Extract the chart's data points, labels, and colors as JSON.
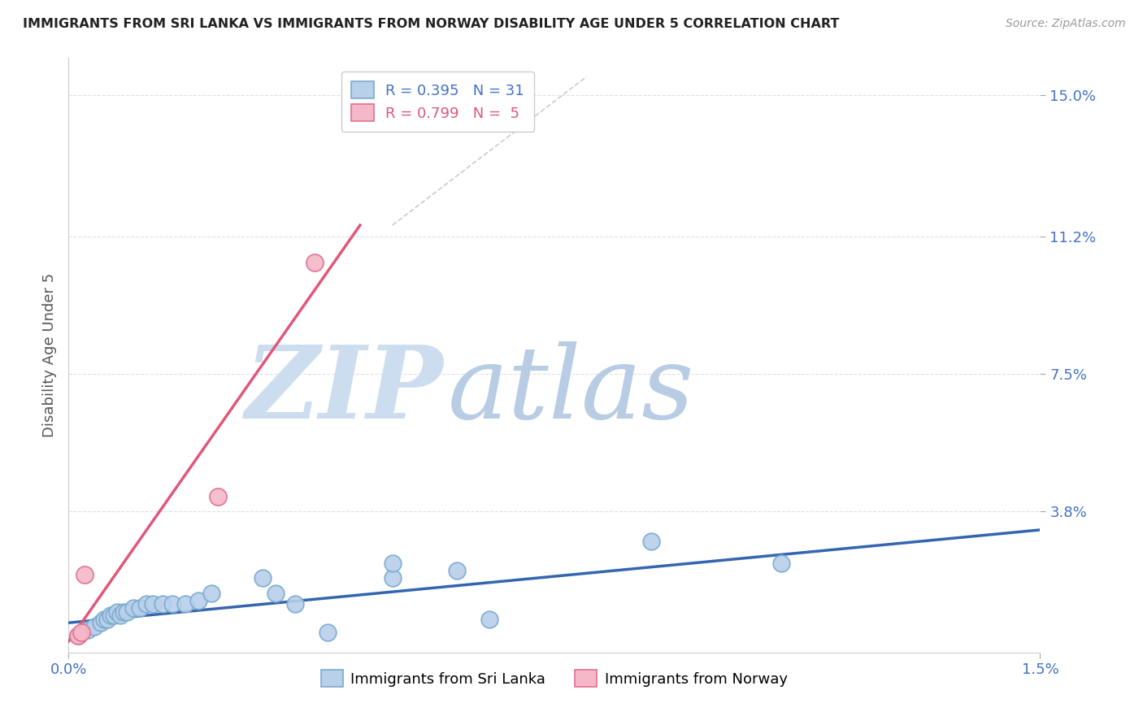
{
  "title": "IMMIGRANTS FROM SRI LANKA VS IMMIGRANTS FROM NORWAY DISABILITY AGE UNDER 5 CORRELATION CHART",
  "source": "Source: ZipAtlas.com",
  "ylabel_label": "Disability Age Under 5",
  "x_min": 0.0,
  "x_max": 0.015,
  "y_min": 0.0,
  "y_max": 0.16,
  "y_ticks": [
    0.038,
    0.075,
    0.112,
    0.15
  ],
  "y_tick_labels": [
    "3.8%",
    "7.5%",
    "11.2%",
    "15.0%"
  ],
  "x_ticks": [
    0.0,
    0.015
  ],
  "x_tick_labels": [
    "0.0%",
    "1.5%"
  ],
  "sri_lanka_scatter": [
    [
      0.00015,
      0.0045
    ],
    [
      0.0003,
      0.006
    ],
    [
      0.0004,
      0.007
    ],
    [
      0.0005,
      0.008
    ],
    [
      0.00055,
      0.009
    ],
    [
      0.0006,
      0.009
    ],
    [
      0.00065,
      0.01
    ],
    [
      0.0007,
      0.01
    ],
    [
      0.00075,
      0.011
    ],
    [
      0.0008,
      0.01
    ],
    [
      0.00085,
      0.011
    ],
    [
      0.0009,
      0.011
    ],
    [
      0.001,
      0.012
    ],
    [
      0.0011,
      0.012
    ],
    [
      0.0012,
      0.013
    ],
    [
      0.0013,
      0.013
    ],
    [
      0.00145,
      0.013
    ],
    [
      0.0016,
      0.013
    ],
    [
      0.0018,
      0.013
    ],
    [
      0.002,
      0.014
    ],
    [
      0.0022,
      0.016
    ],
    [
      0.003,
      0.02
    ],
    [
      0.0032,
      0.016
    ],
    [
      0.0035,
      0.013
    ],
    [
      0.004,
      0.0055
    ],
    [
      0.005,
      0.02
    ],
    [
      0.005,
      0.024
    ],
    [
      0.006,
      0.022
    ],
    [
      0.0065,
      0.009
    ],
    [
      0.009,
      0.03
    ],
    [
      0.011,
      0.024
    ]
  ],
  "norway_scatter": [
    [
      0.00015,
      0.0045
    ],
    [
      0.0002,
      0.0055
    ],
    [
      0.00025,
      0.021
    ],
    [
      0.0023,
      0.042
    ],
    [
      0.0038,
      0.105
    ]
  ],
  "sri_lanka_line": [
    [
      0.0,
      0.008
    ],
    [
      0.015,
      0.033
    ]
  ],
  "norway_line": [
    [
      0.0,
      0.003
    ],
    [
      0.0045,
      0.115
    ]
  ],
  "diagonal_line": [
    [
      0.005,
      0.115
    ],
    [
      0.008,
      0.155
    ]
  ],
  "scatter_color_sri": "#b8d0ea",
  "scatter_edge_sri": "#7aaad0",
  "scatter_color_norway": "#f5b8c8",
  "scatter_edge_norway": "#e07090",
  "line_color_sri": "#3465b0",
  "line_color_norway": "#e05878",
  "diagonal_color": "#cccccc",
  "watermark_zip": "ZIP",
  "watermark_atlas": "atlas",
  "watermark_color_zip": "#ccddef",
  "watermark_color_atlas": "#b8cce4",
  "background_color": "#ffffff",
  "grid_color": "#e0e0e0",
  "title_color": "#222222",
  "tick_color": "#4472c4",
  "ylabel_color": "#555555",
  "legend1_r_color": "#4472c4",
  "legend1_n_color": "#e05878",
  "legend2_r_color": "#e05878",
  "legend2_n_color": "#4472c4"
}
